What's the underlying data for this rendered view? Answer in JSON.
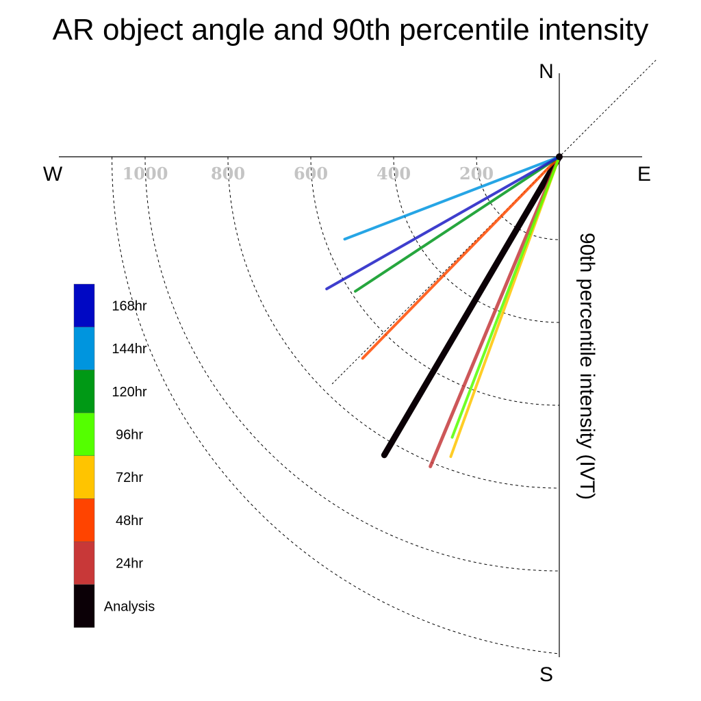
{
  "chart_data": {
    "type": "polar-line",
    "title": "AR object angle and 90th percentile intensity",
    "ylabel": "90th percentile intensity (IVT)",
    "compass": {
      "north": "N",
      "south": "S",
      "east": "E",
      "west": "W"
    },
    "radial_ticks": [
      {
        "value": 200,
        "label": "200"
      },
      {
        "value": 400,
        "label": "400"
      },
      {
        "value": 600,
        "label": "600"
      },
      {
        "value": 800,
        "label": "800"
      },
      {
        "value": 1000,
        "label": "1000"
      }
    ],
    "radial_max": 1200,
    "series": [
      {
        "name": "Analysis",
        "angle_deg": 239.6,
        "intensity": 835,
        "color": "#0b0006",
        "width": 9
      },
      {
        "name": "24hr",
        "angle_deg": 247.4,
        "intensity": 810,
        "color": "#c43a3c",
        "width": 5
      },
      {
        "name": "48hr",
        "angle_deg": 225.7,
        "intensity": 680,
        "color": "#ff4a00",
        "width": 4
      },
      {
        "name": "72hr",
        "angle_deg": 250.1,
        "intensity": 770,
        "color": "#ffc400",
        "width": 4
      },
      {
        "name": "96hr",
        "angle_deg": 249.1,
        "intensity": 725,
        "color": "#57ff00",
        "width": 4
      },
      {
        "name": "120hr",
        "angle_deg": 213.4,
        "intensity": 590,
        "color": "#00961c",
        "width": 4
      },
      {
        "name": "144hr",
        "angle_deg": 201.0,
        "intensity": 555,
        "color": "#0095e0",
        "width": 4
      },
      {
        "name": "168hr",
        "angle_deg": 209.6,
        "intensity": 646,
        "color": "#1c1cc4",
        "width": 4
      }
    ],
    "legend": {
      "placement": "left",
      "items": [
        {
          "label": "168hr",
          "color": "#0008c4"
        },
        {
          "label": "144hr",
          "color": "#0095de"
        },
        {
          "label": "120hr",
          "color": "#009915"
        },
        {
          "label": "96hr",
          "color": "#54ff00"
        },
        {
          "label": "72hr",
          "color": "#ffc400"
        },
        {
          "label": "48hr",
          "color": "#ff4400"
        },
        {
          "label": "24hr",
          "color": "#c83838"
        },
        {
          "label": "Analysis",
          "color": "#0b0006"
        }
      ]
    }
  }
}
